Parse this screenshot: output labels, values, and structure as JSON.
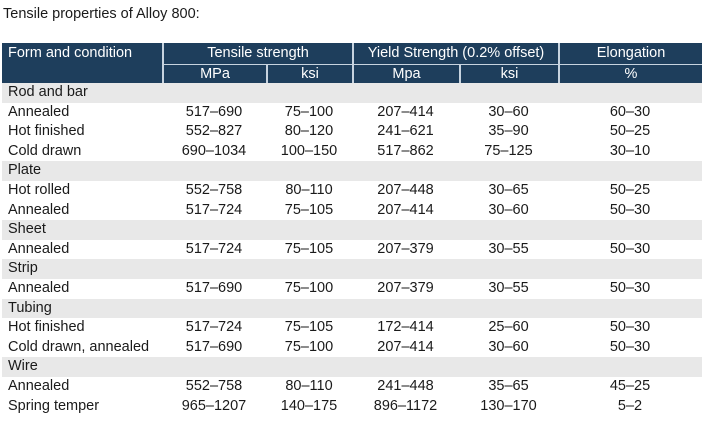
{
  "caption": "Tensile properties of Alloy 800:",
  "header": {
    "form": "Form and condition",
    "tensile": "Tensile strength",
    "yield": "Yield Strength (0.2% offset)",
    "elongation": "Elongation",
    "units": [
      "MPa",
      "ksi",
      "Mpa",
      "ksi",
      "%"
    ]
  },
  "groups": [
    {
      "name": "Rod and bar",
      "rows": [
        [
          "Annealed",
          "517–690",
          "75–100",
          "207–414",
          "30–60",
          "60–30"
        ],
        [
          "Hot finished",
          "552–827",
          "80–120",
          "241–621",
          "35–90",
          "50–25"
        ],
        [
          "Cold drawn",
          "690–1034",
          "100–150",
          "517–862",
          "75–125",
          "30–10"
        ]
      ]
    },
    {
      "name": "Plate",
      "rows": [
        [
          "Hot rolled",
          "552–758",
          "80–110",
          "207–448",
          "30–65",
          "50–25"
        ],
        [
          "Annealed",
          "517–724",
          "75–105",
          "207–414",
          "30–60",
          "50–30"
        ]
      ]
    },
    {
      "name": "Sheet",
      "rows": [
        [
          "Annealed",
          "517–724",
          "75–105",
          "207–379",
          "30–55",
          "50–30"
        ]
      ]
    },
    {
      "name": "Strip",
      "rows": [
        [
          "Annealed",
          "517–690",
          "75–100",
          "207–379",
          "30–55",
          "50–30"
        ]
      ]
    },
    {
      "name": "Tubing",
      "rows": [
        [
          "Hot finished",
          "517–724",
          "75–105",
          "172–414",
          "25–60",
          "50–30"
        ],
        [
          "Cold drawn, annealed",
          "517–690",
          "75–100",
          "207–414",
          "30–60",
          "50–30"
        ]
      ]
    },
    {
      "name": "Wire",
      "rows": [
        [
          "Annealed",
          "552–758",
          "80–110",
          "241–448",
          "35–65",
          "45–25"
        ],
        [
          "Spring temper",
          "965–1207",
          "140–175",
          "896–1172",
          "130–170",
          "5–2"
        ]
      ]
    }
  ],
  "colors": {
    "header_bg": "#1e3e5c",
    "group_bg": "#e8e8e8"
  }
}
